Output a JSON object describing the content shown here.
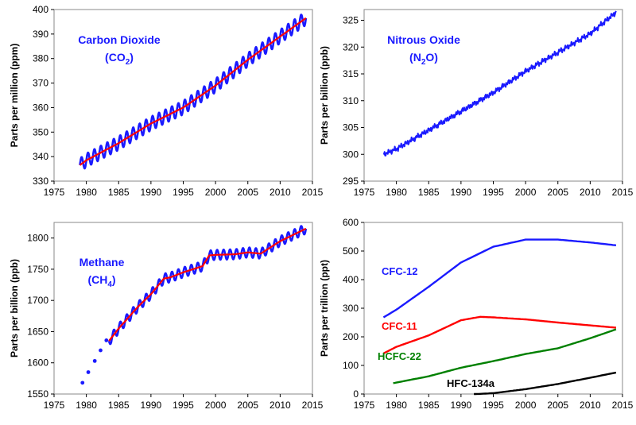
{
  "chart_data": [
    {
      "type": "line",
      "panel": "top-left",
      "ylabel": "Parts per million (ppm)",
      "xlim": [
        1975,
        2015
      ],
      "ylim": [
        330,
        400
      ],
      "x_ticks": [
        "1975",
        "1980",
        "1985",
        "1990",
        "1995",
        "2000",
        "2005",
        "2010",
        "2015"
      ],
      "y_ticks": [
        "330",
        "340",
        "350",
        "360",
        "370",
        "380",
        "390",
        "400"
      ],
      "annotation": {
        "line1": "Carbon Dioxide",
        "line2_main": "(CO",
        "line2_sub": "2",
        "line2_end": ")",
        "color": "#1a1aff"
      },
      "series": [
        {
          "style": "seasonal-line",
          "color": "#1a1aff",
          "seasonal_amplitude": 2.8,
          "x": [
            1979,
            1980,
            1985,
            1990,
            1995,
            2000,
            2005,
            2010,
            2014
          ],
          "y": [
            336.5,
            338.5,
            345.5,
            353.5,
            360,
            369,
            379.5,
            389,
            396.5
          ]
        },
        {
          "style": "trend-line",
          "color": "#ff0000",
          "x": [
            1979,
            1980,
            1985,
            1990,
            1995,
            2000,
            2005,
            2010,
            2014
          ],
          "y": [
            336.5,
            338.5,
            345.5,
            353.5,
            360,
            369,
            379.5,
            389,
            396.5
          ]
        }
      ]
    },
    {
      "type": "line",
      "panel": "top-right",
      "ylabel": "Parts per billion (ppb)",
      "xlim": [
        1975,
        2015
      ],
      "ylim": [
        295,
        327
      ],
      "x_ticks": [
        "1975",
        "1980",
        "1985",
        "1990",
        "1995",
        "2000",
        "2005",
        "2010",
        "2015"
      ],
      "y_ticks": [
        "295",
        "300",
        "305",
        "310",
        "315",
        "320",
        "325"
      ],
      "annotation": {
        "line1": "Nitrous Oxide",
        "line2_main": "(N",
        "line2_sub": "2",
        "line2_end": "O)",
        "color": "#1a1aff"
      },
      "series": [
        {
          "style": "noisy-line",
          "color": "#1a1aff",
          "x": [
            1978,
            1980,
            1985,
            1990,
            1995,
            2000,
            2005,
            2010,
            2014
          ],
          "y": [
            300,
            301,
            304.5,
            308,
            311.5,
            315.5,
            319,
            322.5,
            326.5
          ]
        }
      ]
    },
    {
      "type": "line",
      "panel": "bottom-left",
      "ylabel": "Parts per billion (ppb)",
      "xlim": [
        1975,
        2015
      ],
      "ylim": [
        1550,
        1825
      ],
      "x_ticks": [
        "1975",
        "1980",
        "1985",
        "1990",
        "1995",
        "2000",
        "2005",
        "2010",
        "2015"
      ],
      "y_ticks": [
        "1550",
        "1600",
        "1650",
        "1700",
        "1750",
        "1800"
      ],
      "annotation": {
        "line1": "Methane",
        "line2_main": "(CH",
        "line2_sub": "4",
        "line2_end": ")",
        "color": "#1a1aff"
      },
      "series": [
        {
          "style": "points",
          "color": "#1a1aff",
          "x": [
            1979.4,
            1980.3,
            1981.3,
            1982.2,
            1983.1
          ],
          "y": [
            1568,
            1585,
            1603,
            1620,
            1636
          ]
        },
        {
          "style": "seasonal-line",
          "color": "#1a1aff",
          "seasonal_amplitude": 8,
          "x": [
            1983.5,
            1985,
            1988,
            1990,
            1992,
            1993,
            1995,
            1998,
            1999,
            2000,
            2003,
            2005,
            2007,
            2010,
            2014
          ],
          "y": [
            1635,
            1655,
            1690,
            1710,
            1735,
            1737,
            1745,
            1755,
            1772,
            1773,
            1774,
            1777,
            1775,
            1795,
            1815
          ]
        },
        {
          "style": "trend-line",
          "color": "#ff0000",
          "x": [
            1983.5,
            1985,
            1988,
            1990,
            1992,
            1993,
            1995,
            1998,
            1999,
            2000,
            2003,
            2005,
            2007,
            2010,
            2014
          ],
          "y": [
            1635,
            1655,
            1690,
            1710,
            1735,
            1737,
            1745,
            1755,
            1772,
            1773,
            1774,
            1777,
            1775,
            1795,
            1815
          ]
        }
      ]
    },
    {
      "type": "line",
      "panel": "bottom-right",
      "ylabel": "Parts per trillion (ppt)",
      "xlim": [
        1975,
        2015
      ],
      "ylim": [
        0,
        600
      ],
      "x_ticks": [
        "1975",
        "1980",
        "1985",
        "1990",
        "1995",
        "2000",
        "2005",
        "2010",
        "2015"
      ],
      "y_ticks": [
        "0",
        "100",
        "200",
        "300",
        "400",
        "500",
        "600"
      ],
      "series": [
        {
          "name": "CFC-12",
          "color": "#1a1aff",
          "x": [
            1978,
            1980,
            1985,
            1990,
            1995,
            2000,
            2005,
            2010,
            2014
          ],
          "y": [
            268,
            295,
            375,
            460,
            515,
            540,
            540,
            530,
            520
          ]
        },
        {
          "name": "CFC-11",
          "color": "#ff0000",
          "x": [
            1978,
            1980,
            1985,
            1990,
            1993,
            1995,
            2000,
            2005,
            2010,
            2014
          ],
          "y": [
            142,
            165,
            205,
            258,
            270,
            268,
            261,
            250,
            240,
            232
          ]
        },
        {
          "name": "HCFC-22",
          "color": "#008000",
          "x": [
            1979.5,
            1980,
            1985,
            1990,
            1995,
            2000,
            2005,
            2010,
            2014
          ],
          "y": [
            38,
            40,
            62,
            92,
            115,
            140,
            160,
            195,
            226
          ]
        },
        {
          "name": "HFC-134a",
          "color": "#000000",
          "x": [
            1992,
            1993,
            1995,
            2000,
            2005,
            2010,
            2014
          ],
          "y": [
            0,
            0.5,
            3,
            17,
            35,
            57,
            75
          ]
        }
      ]
    }
  ]
}
